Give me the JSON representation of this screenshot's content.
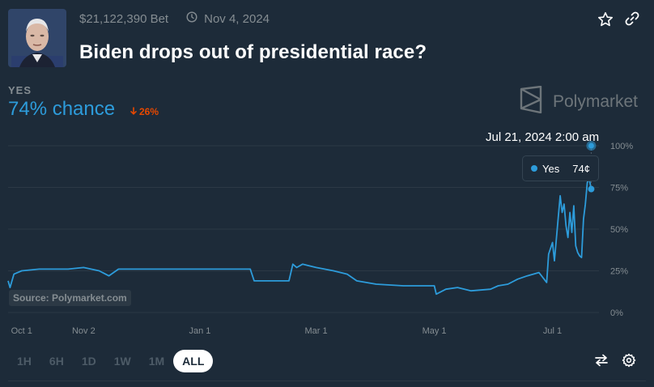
{
  "market": {
    "volume": "$21,122,390 Bet",
    "end_date": "Nov 4, 2024",
    "title": "Biden drops out of presidential race?",
    "outcome_label": "YES",
    "chance_text": "74% chance",
    "change_text": "26%",
    "brand": "Polymarket",
    "source": "Source: Polymarket.com"
  },
  "hover": {
    "date": "Jul 21, 2024 2:00 am",
    "series_label": "Yes",
    "value_text": "74¢"
  },
  "range_buttons": [
    "1H",
    "6H",
    "1D",
    "1W",
    "1M",
    "ALL"
  ],
  "active_range": "ALL",
  "colors": {
    "background": "#1d2b39",
    "line": "#2d9cdb",
    "down": "#e64800",
    "muted": "#858d92"
  },
  "chart_data": {
    "type": "line",
    "x_ticks": [
      "Oct 1",
      "Nov 2",
      "Jan 1",
      "Mar 1",
      "May 1",
      "Jul 1"
    ],
    "y_ticks": [
      "0%",
      "25%",
      "50%",
      "75%",
      "100%"
    ],
    "ylim": [
      0,
      100
    ],
    "xlim": [
      "2023-09-24",
      "2024-07-25"
    ],
    "series": [
      {
        "name": "Yes",
        "points": [
          [
            "2023-09-24",
            19
          ],
          [
            "2023-09-25",
            15
          ],
          [
            "2023-09-27",
            23
          ],
          [
            "2023-10-01",
            25
          ],
          [
            "2023-10-10",
            26
          ],
          [
            "2023-10-25",
            26
          ],
          [
            "2023-11-02",
            27
          ],
          [
            "2023-11-10",
            25
          ],
          [
            "2023-11-15",
            22
          ],
          [
            "2023-11-20",
            26
          ],
          [
            "2023-12-01",
            26
          ],
          [
            "2023-12-15",
            26
          ],
          [
            "2024-01-01",
            26
          ],
          [
            "2024-01-15",
            26
          ],
          [
            "2024-01-27",
            26
          ],
          [
            "2024-01-29",
            19
          ],
          [
            "2024-02-10",
            19
          ],
          [
            "2024-02-16",
            19
          ],
          [
            "2024-02-18",
            29
          ],
          [
            "2024-02-20",
            27
          ],
          [
            "2024-02-23",
            29
          ],
          [
            "2024-03-01",
            27
          ],
          [
            "2024-03-10",
            25
          ],
          [
            "2024-03-17",
            23
          ],
          [
            "2024-03-22",
            19
          ],
          [
            "2024-04-01",
            17
          ],
          [
            "2024-04-15",
            16
          ],
          [
            "2024-04-25",
            16
          ],
          [
            "2024-05-01",
            16
          ],
          [
            "2024-05-02",
            11
          ],
          [
            "2024-05-07",
            14
          ],
          [
            "2024-05-13",
            15
          ],
          [
            "2024-05-20",
            13
          ],
          [
            "2024-05-30",
            14
          ],
          [
            "2024-06-03",
            16
          ],
          [
            "2024-06-08",
            17
          ],
          [
            "2024-06-13",
            20
          ],
          [
            "2024-06-18",
            22
          ],
          [
            "2024-06-24",
            24
          ],
          [
            "2024-06-26",
            21
          ],
          [
            "2024-06-28",
            18
          ],
          [
            "2024-06-29",
            35
          ],
          [
            "2024-07-01",
            42
          ],
          [
            "2024-07-02",
            31
          ],
          [
            "2024-07-04",
            57
          ],
          [
            "2024-07-05",
            70
          ],
          [
            "2024-07-06",
            60
          ],
          [
            "2024-07-07",
            65
          ],
          [
            "2024-07-08",
            52
          ],
          [
            "2024-07-09",
            45
          ],
          [
            "2024-07-10",
            60
          ],
          [
            "2024-07-11",
            48
          ],
          [
            "2024-07-12",
            64
          ],
          [
            "2024-07-13",
            40
          ],
          [
            "2024-07-14",
            36
          ],
          [
            "2024-07-15",
            34
          ],
          [
            "2024-07-16",
            33
          ],
          [
            "2024-07-17",
            56
          ],
          [
            "2024-07-18",
            65
          ],
          [
            "2024-07-19",
            78
          ],
          [
            "2024-07-20",
            80
          ],
          [
            "2024-07-21",
            74
          ]
        ]
      }
    ],
    "hover_point": {
      "x": "2024-07-21",
      "y": 74
    },
    "hover_marker_y": 100,
    "grid": true
  }
}
